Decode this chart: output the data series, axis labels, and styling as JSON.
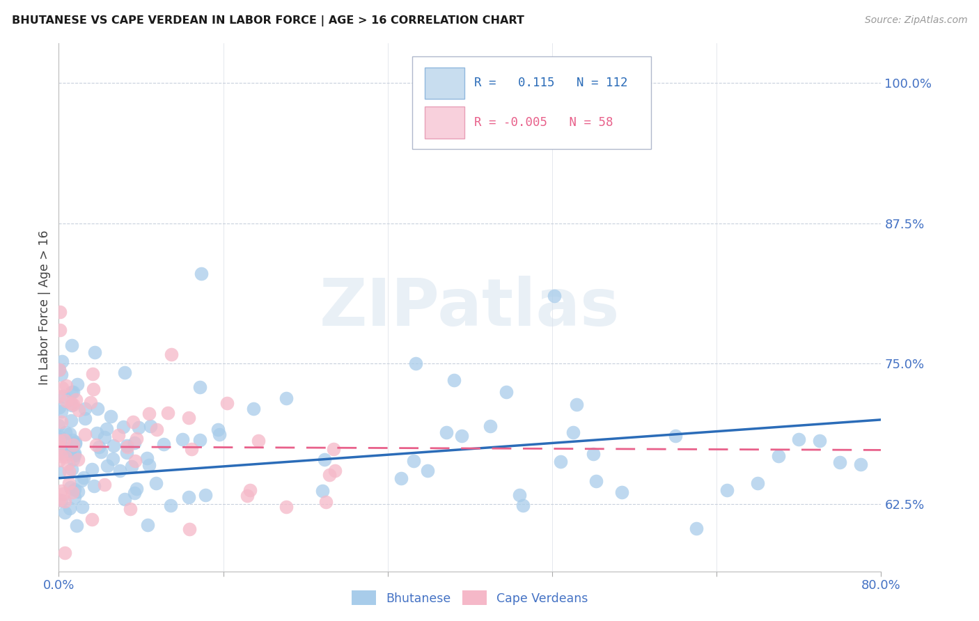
{
  "title": "BHUTANESE VS CAPE VERDEAN IN LABOR FORCE | AGE > 16 CORRELATION CHART",
  "source": "Source: ZipAtlas.com",
  "ylabel": "In Labor Force | Age > 16",
  "xlim": [
    0.0,
    0.8
  ],
  "ylim": [
    0.565,
    1.035
  ],
  "yticks": [
    0.625,
    0.75,
    0.875,
    1.0
  ],
  "ytick_labels": [
    "62.5%",
    "75.0%",
    "87.5%",
    "100.0%"
  ],
  "xtick_vals": [
    0.0,
    0.16,
    0.32,
    0.48,
    0.64,
    0.8
  ],
  "xtick_labels": [
    "0.0%",
    "",
    "",
    "",
    "",
    "80.0%"
  ],
  "blue_R": 0.115,
  "blue_N": 112,
  "pink_R": -0.005,
  "pink_N": 58,
  "blue_color": "#A8CCEA",
  "pink_color": "#F5B8C8",
  "blue_line_color": "#2B6CB8",
  "pink_line_color": "#E8608A",
  "axis_color": "#4472C4",
  "tick_color": "#4472C4",
  "grid_color": "#C8D0DC",
  "background_color": "#FFFFFF",
  "watermark": "ZIPatlas",
  "blue_scatter_seed": 1234,
  "pink_scatter_seed": 5678,
  "blue_trend_x0": 0.0,
  "blue_trend_y0": 0.648,
  "blue_trend_x1": 0.8,
  "blue_trend_y1": 0.7,
  "pink_trend_x0": 0.0,
  "pink_trend_y0": 0.676,
  "pink_trend_x1": 0.8,
  "pink_trend_y1": 0.673
}
